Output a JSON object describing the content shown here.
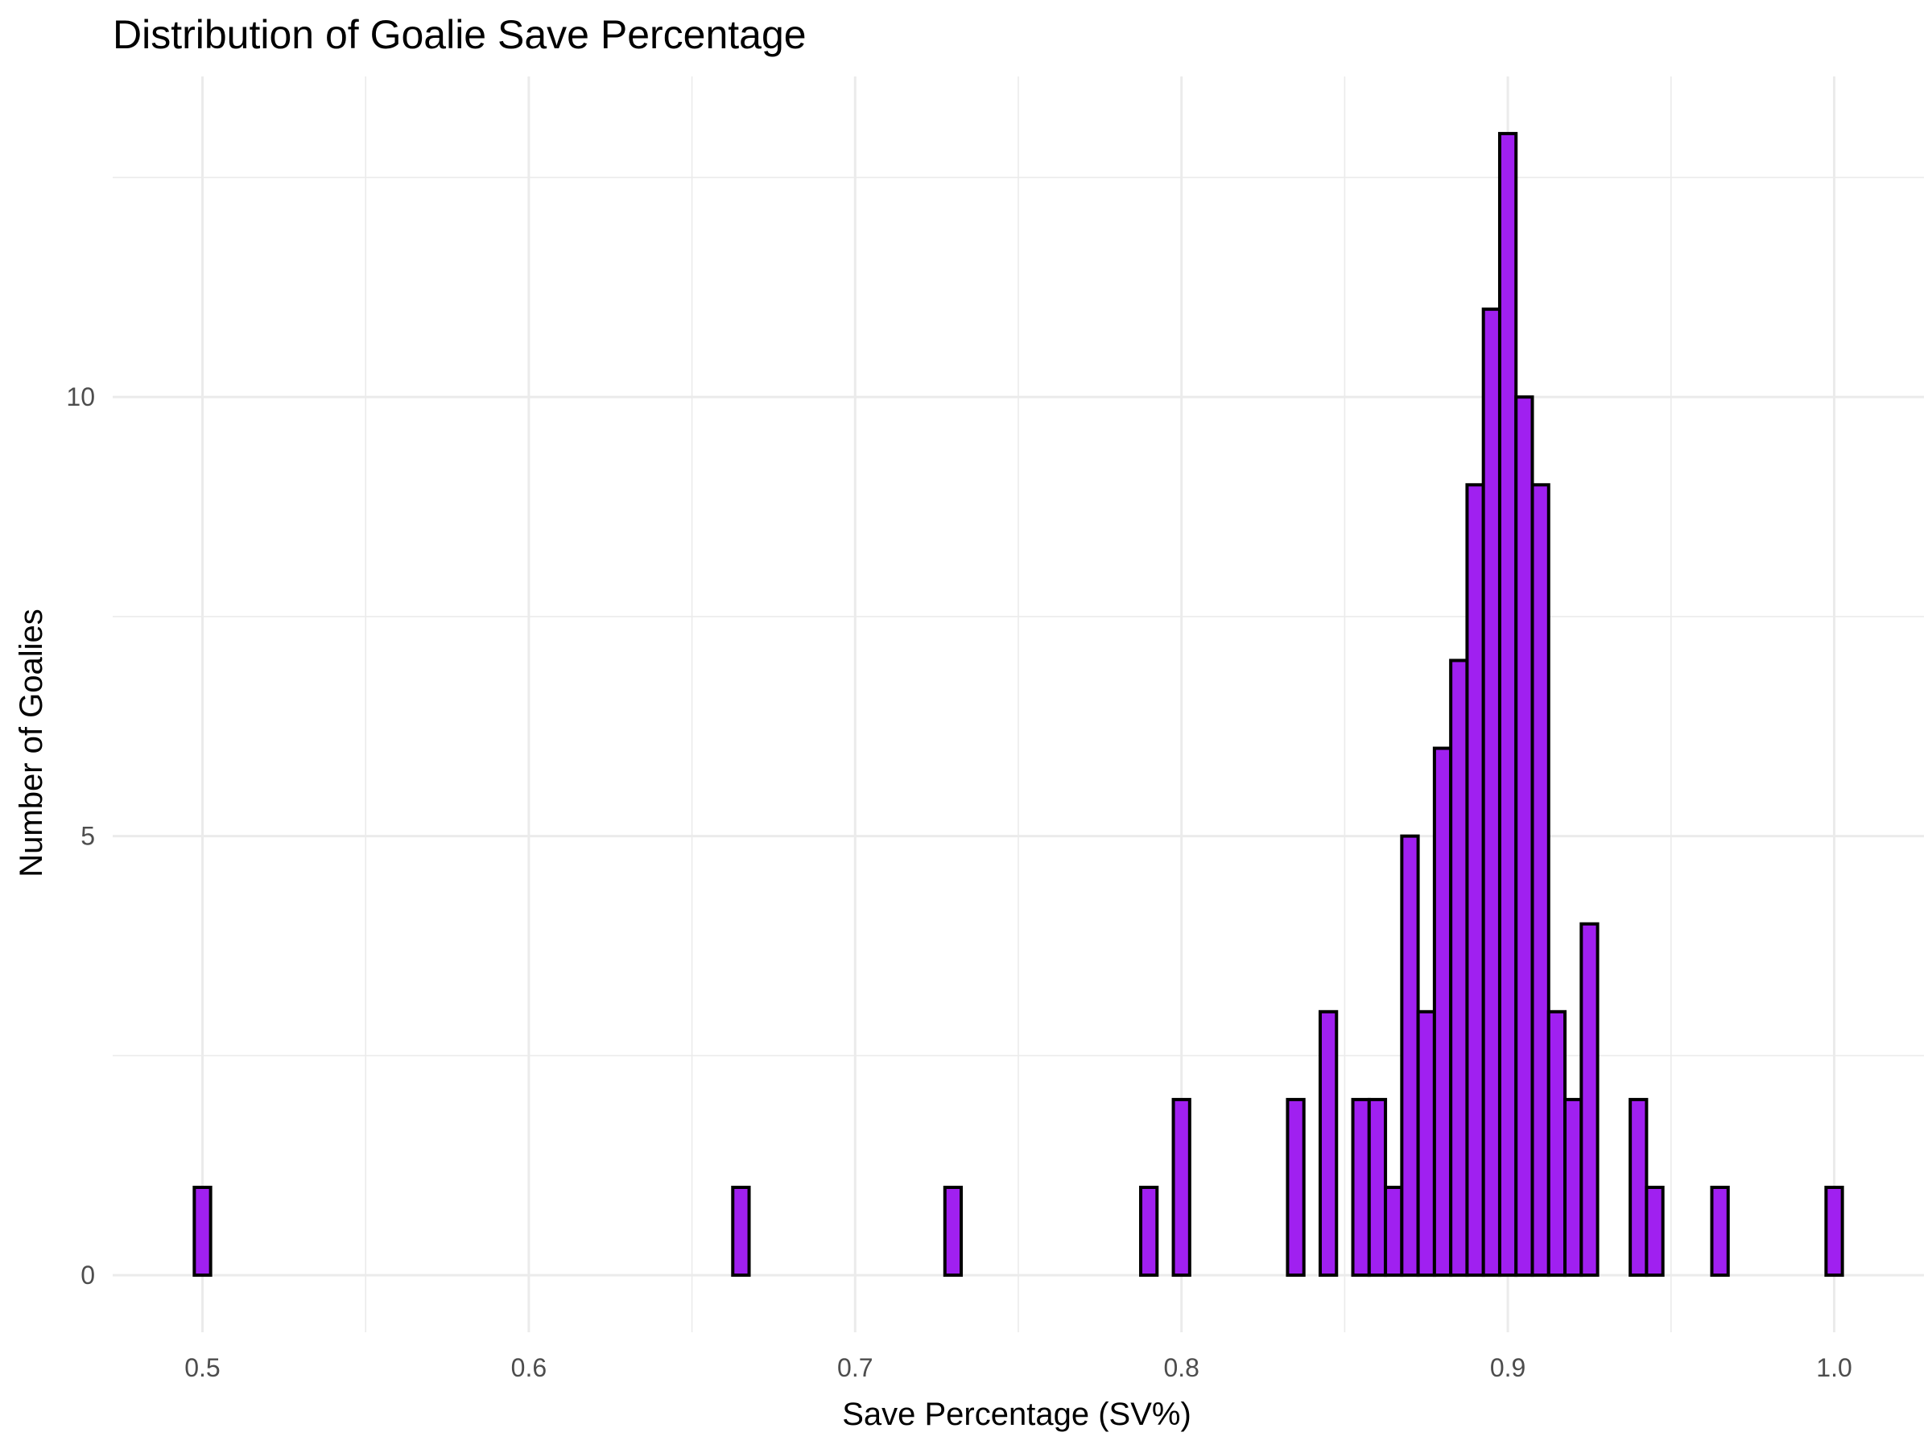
{
  "chart_data": {
    "type": "bar",
    "title": "Distribution of Goalie Save Percentage",
    "xlabel": "Save Percentage (SV%)",
    "ylabel": "Number of Goalies",
    "xlim": [
      0.4725,
      1.0275
    ],
    "ylim": [
      -0.65,
      13.65
    ],
    "x_ticks": [
      0.5,
      0.6,
      0.7,
      0.8,
      0.9,
      1.0
    ],
    "x_tick_labels": [
      "0.5",
      "0.6",
      "0.7",
      "0.8",
      "0.9",
      "1.0"
    ],
    "y_ticks": [
      0,
      5,
      10
    ],
    "y_tick_labels": [
      "0",
      "5",
      "10"
    ],
    "grid": true,
    "bin_width": 0.005,
    "bins": [
      {
        "x": 0.5,
        "count": 1
      },
      {
        "x": 0.665,
        "count": 1
      },
      {
        "x": 0.73,
        "count": 1
      },
      {
        "x": 0.79,
        "count": 1
      },
      {
        "x": 0.8,
        "count": 2
      },
      {
        "x": 0.835,
        "count": 2
      },
      {
        "x": 0.845,
        "count": 3
      },
      {
        "x": 0.855,
        "count": 2
      },
      {
        "x": 0.86,
        "count": 2
      },
      {
        "x": 0.865,
        "count": 1
      },
      {
        "x": 0.87,
        "count": 5
      },
      {
        "x": 0.875,
        "count": 3
      },
      {
        "x": 0.88,
        "count": 6
      },
      {
        "x": 0.885,
        "count": 7
      },
      {
        "x": 0.89,
        "count": 9
      },
      {
        "x": 0.895,
        "count": 11
      },
      {
        "x": 0.9,
        "count": 13
      },
      {
        "x": 0.905,
        "count": 10
      },
      {
        "x": 0.91,
        "count": 9
      },
      {
        "x": 0.915,
        "count": 3
      },
      {
        "x": 0.92,
        "count": 2
      },
      {
        "x": 0.925,
        "count": 4
      },
      {
        "x": 0.94,
        "count": 2
      },
      {
        "x": 0.945,
        "count": 1
      },
      {
        "x": 0.965,
        "count": 1
      },
      {
        "x": 1.0,
        "count": 1
      }
    ],
    "fill_color": "#a020f0",
    "edge_color": "#000000"
  }
}
